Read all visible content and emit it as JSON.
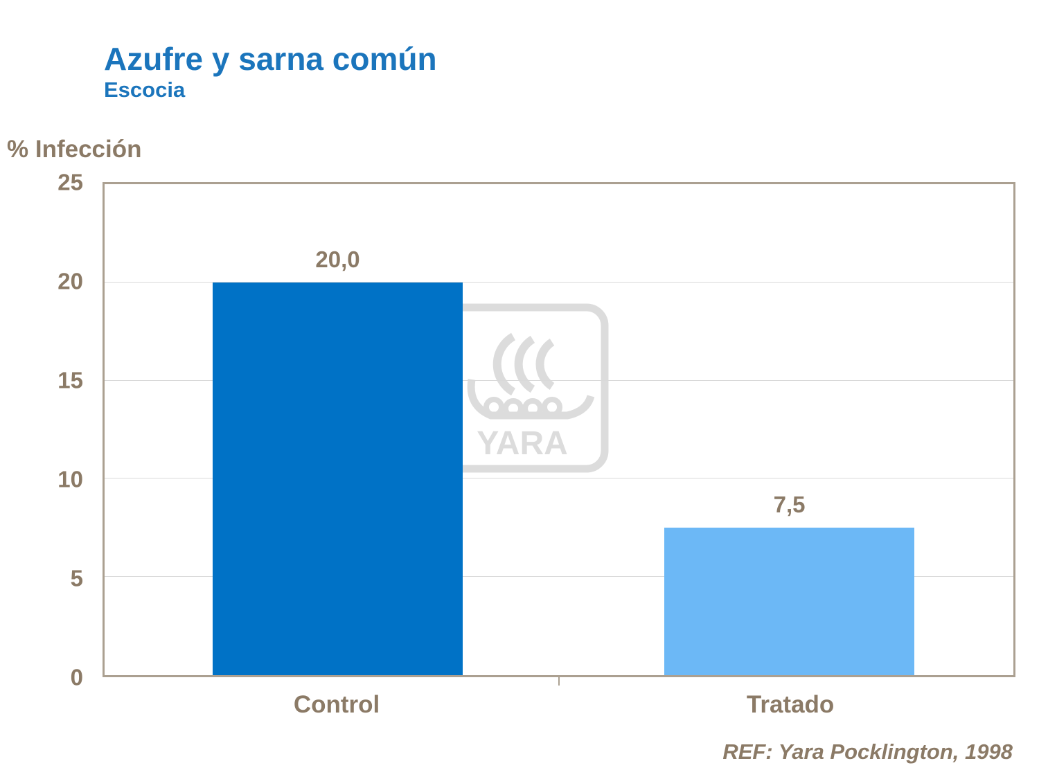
{
  "slide": {
    "title": "Azufre y sarna común",
    "subtitle": "Escocia",
    "reference": "REF: Yara Pocklington,  1998"
  },
  "chart_data": {
    "type": "bar",
    "title": "Azufre y sarna común",
    "subtitle": "Escocia",
    "ylabel": "% Infección",
    "xlabel": "",
    "categories": [
      "Control",
      "Tratado"
    ],
    "values": [
      20.0,
      7.5
    ],
    "value_labels": [
      "20,0",
      "7,5"
    ],
    "ylim": [
      0,
      25
    ],
    "yticks": [
      0,
      5,
      10,
      15,
      20,
      25
    ],
    "grid": true,
    "legend": false,
    "bar_colors": [
      "#0072C6",
      "#6CB8F6"
    ],
    "reference": "REF: Yara Pocklington,  1998"
  },
  "colors": {
    "title_blue": "#1B75BC",
    "text_brown": "#8B7A66",
    "plot_border": "#ABA091",
    "gridline": "#D9D9D9",
    "watermark_gray": "#DCDCDC"
  },
  "watermark": {
    "label": "YARA"
  }
}
